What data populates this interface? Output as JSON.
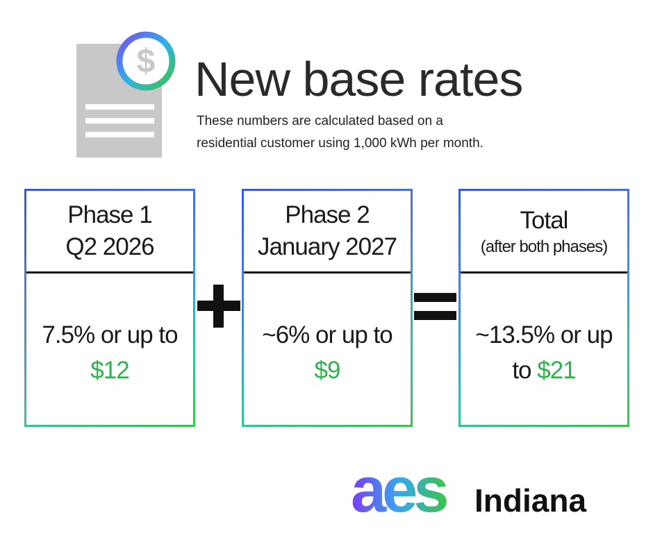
{
  "icon": {
    "symbol": "$"
  },
  "header": {
    "title": "New base rates",
    "subtitle_lines": [
      "These numbers are calculated based on a",
      "residential customer using 1,000 kWh per month."
    ]
  },
  "cards": [
    {
      "heading": [
        "Phase 1",
        "Q2 2026"
      ],
      "text": "7.5% or up to",
      "amount": "$12"
    },
    {
      "heading": [
        "Phase 2",
        "January 2027"
      ],
      "text": "~6% or up to",
      "amount": "$9"
    },
    {
      "heading": [
        "Total",
        "(after both phases)"
      ],
      "text": "~13.5% or up to",
      "amount": "$21"
    }
  ],
  "logo": {
    "mark": "aes",
    "region": "Indiana"
  }
}
